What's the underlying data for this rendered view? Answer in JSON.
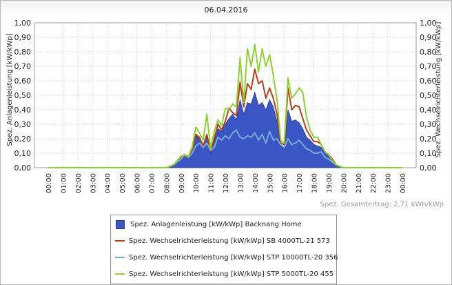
{
  "chart_data": {
    "type": "area",
    "title": "06.04.2016",
    "ylabel_left": "Spez. Anlagenleistung [kW/kWp]",
    "ylabel_right": "Spez. Wechselrichterleistung [kW/kWp]",
    "ylim": [
      0,
      1.0
    ],
    "yticks": [
      "0,00",
      "0,10",
      "0,20",
      "0,30",
      "0,40",
      "0,50",
      "0,60",
      "0,70",
      "0,80",
      "0,90",
      "1,00"
    ],
    "xtick_labels": [
      "00:00",
      "01:00",
      "02:00",
      "03:00",
      "04:00",
      "05:00",
      "06:00",
      "07:00",
      "08:00",
      "09:00",
      "10:00",
      "11:00",
      "12:00",
      "13:00",
      "14:00",
      "15:00",
      "16:00",
      "17:00",
      "18:00",
      "19:00",
      "20:00",
      "21:00",
      "22:00",
      "23:00",
      "00:00"
    ],
    "x_unit": "hours",
    "x": [
      0,
      7.5,
      8,
      8.25,
      8.5,
      8.75,
      9,
      9.25,
      9.5,
      9.75,
      10,
      10.25,
      10.5,
      10.75,
      11,
      11.25,
      11.5,
      11.75,
      12,
      12.25,
      12.5,
      12.75,
      13,
      13.25,
      13.5,
      13.75,
      14,
      14.25,
      14.5,
      14.75,
      15,
      15.25,
      15.5,
      15.75,
      16,
      16.25,
      16.5,
      16.75,
      17,
      17.25,
      17.5,
      17.75,
      18,
      18.25,
      18.5,
      18.75,
      19,
      19.25,
      19.5,
      19.75,
      20,
      24
    ],
    "series": [
      {
        "name": "Spez. Anlagenleistung [kW/kWp] Backnang Home",
        "kind": "area",
        "color": "#3a56c5",
        "values": [
          0,
          0,
          0,
          0.01,
          0.02,
          0.04,
          0.07,
          0.08,
          0.07,
          0.12,
          0.23,
          0.2,
          0.15,
          0.22,
          0.1,
          0.18,
          0.27,
          0.25,
          0.3,
          0.34,
          0.37,
          0.33,
          0.47,
          0.37,
          0.45,
          0.44,
          0.52,
          0.43,
          0.45,
          0.4,
          0.47,
          0.42,
          0.32,
          0.15,
          0.14,
          0.4,
          0.32,
          0.33,
          0.31,
          0.27,
          0.21,
          0.19,
          0.16,
          0.15,
          0.14,
          0.1,
          0.08,
          0.06,
          0.02,
          0.01,
          0,
          0
        ]
      },
      {
        "name": "Spez. Wechselrichterleistung [kW/kWp] SB 4000TL-21 573",
        "kind": "line",
        "color": "#b2401a",
        "values": [
          0,
          0,
          0,
          0.01,
          0.02,
          0.04,
          0.07,
          0.08,
          0.07,
          0.12,
          0.23,
          0.21,
          0.15,
          0.23,
          0.11,
          0.2,
          0.3,
          0.26,
          0.32,
          0.41,
          0.38,
          0.36,
          0.59,
          0.42,
          0.58,
          0.54,
          0.68,
          0.58,
          0.6,
          0.48,
          0.55,
          0.48,
          0.37,
          0.17,
          0.16,
          0.55,
          0.4,
          0.43,
          0.42,
          0.34,
          0.26,
          0.22,
          0.18,
          0.18,
          0.16,
          0.11,
          0.09,
          0.06,
          0.02,
          0.01,
          0,
          0
        ]
      },
      {
        "name": "Spez. Wechselrichterleistung [kW/kWp] STP 10000TL-20 356",
        "kind": "line",
        "color": "#78acd8",
        "values": [
          0,
          0,
          0,
          0.01,
          0.02,
          0.04,
          0.06,
          0.09,
          0.07,
          0.1,
          0.15,
          0.17,
          0.14,
          0.17,
          0.12,
          0.14,
          0.21,
          0.19,
          0.22,
          0.2,
          0.24,
          0.26,
          0.21,
          0.2,
          0.22,
          0.21,
          0.24,
          0.19,
          0.23,
          0.17,
          0.25,
          0.19,
          0.2,
          0.16,
          0.14,
          0.2,
          0.16,
          0.17,
          0.19,
          0.16,
          0.13,
          0.12,
          0.1,
          0.1,
          0.11,
          0.07,
          0.06,
          0.04,
          0.02,
          0.01,
          0,
          0
        ]
      },
      {
        "name": "Spez. Wechselrichterleistung [kW/kWp] STP 5000TL-20 455",
        "kind": "line",
        "color": "#8ed12c",
        "values": [
          0,
          0,
          0,
          0.01,
          0.02,
          0.05,
          0.08,
          0.09,
          0.08,
          0.14,
          0.28,
          0.24,
          0.19,
          0.37,
          0.13,
          0.25,
          0.33,
          0.29,
          0.41,
          0.4,
          0.44,
          0.42,
          0.76,
          0.45,
          0.82,
          0.7,
          0.85,
          0.66,
          0.82,
          0.7,
          0.78,
          0.64,
          0.47,
          0.19,
          0.17,
          0.62,
          0.48,
          0.51,
          0.55,
          0.52,
          0.35,
          0.26,
          0.21,
          0.21,
          0.16,
          0.11,
          0.09,
          0.05,
          0.02,
          0.01,
          0,
          0
        ]
      }
    ],
    "footer_total": "Spez. Gesamtertrag: 2,71 kWh/kWp",
    "legend_position": "bottom-center",
    "grid": true
  }
}
